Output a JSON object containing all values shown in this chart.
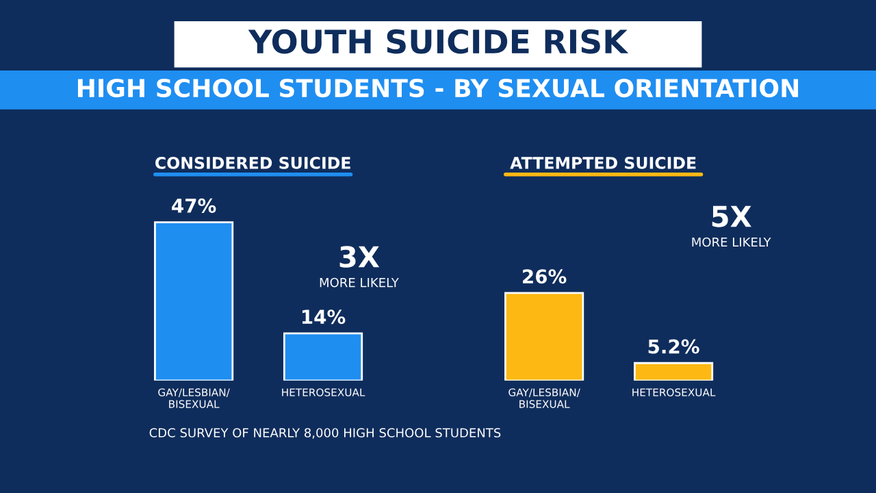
{
  "chart_data": [
    {
      "type": "other",
      "title": "YOUTH SUICIDE RISK",
      "subtitle": "HIGH SCHOOL STUDENTS - BY SEXUAL ORIENTATION",
      "annotations": [
        "CDC SURVEY OF NEARLY 8,000 HIGH SCHOOL STUDENTS"
      ]
    },
    {
      "type": "bar",
      "title": "CONSIDERED SUICIDE",
      "categories": [
        "GAY/LESBIAN/\nBISEXUAL",
        "HETEROSEXUAL"
      ],
      "values": [
        47,
        14
      ],
      "value_labels": [
        "47%",
        "14%"
      ],
      "colors": [
        "#1f8ef1",
        "#1f8ef1"
      ],
      "annotations": [
        "3X",
        "MORE LIKELY"
      ],
      "tick_labels": "x",
      "grid": false,
      "legend": false
    },
    {
      "type": "bar",
      "title": "ATTEMPTED SUICIDE",
      "categories": [
        "GAY/LESBIAN/\nBISEXUAL",
        "HETEROSEXUAL"
      ],
      "values": [
        26,
        5.2
      ],
      "value_labels": [
        "26%",
        "5.2%"
      ],
      "colors": [
        "#fdb813",
        "#fdb813"
      ],
      "annotations": [
        "5X",
        "MORE LIKELY"
      ],
      "tick_labels": "x",
      "grid": false,
      "legend": false
    }
  ]
}
